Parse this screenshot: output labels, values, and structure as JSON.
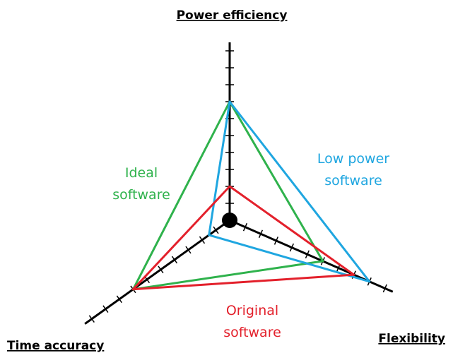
{
  "chart_data": {
    "type": "radar",
    "axes": [
      "Power efficiency",
      "Flexibility",
      "Time accuracy"
    ],
    "rlim": [
      0,
      10.5
    ],
    "ticks": [
      1,
      2,
      3,
      4,
      5,
      6,
      7,
      8,
      9,
      10
    ],
    "series": [
      {
        "name": "Ideal software",
        "color": "#2fb24c",
        "values": [
          7,
          6,
          7
        ]
      },
      {
        "name": "Low power software",
        "color": "#1fa6e0",
        "values": [
          7,
          9,
          1.5
        ]
      },
      {
        "name": "Original software",
        "color": "#e3202b",
        "values": [
          2,
          8,
          7
        ]
      }
    ]
  }
}
